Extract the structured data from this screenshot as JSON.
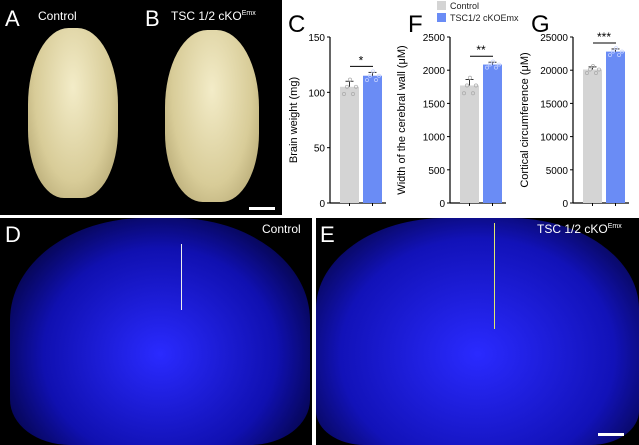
{
  "panels": {
    "a": {
      "letter": "A",
      "title": "Control"
    },
    "b": {
      "letter": "B",
      "title": "TSC 1/2 cKO",
      "sup": "Emx"
    },
    "d": {
      "letter": "D",
      "title": "Control"
    },
    "e": {
      "letter": "E",
      "title": "TSC 1/2 cKO",
      "sup": "Emx"
    }
  },
  "legend": [
    {
      "label": "Control",
      "color": "#d4d4d4"
    },
    {
      "label": "TSC1/2 cKOEmx",
      "color": "#6a8cf5"
    }
  ],
  "colors": {
    "control": "#d4d4d4",
    "ko": "#6a8cf5",
    "stain": "#1a1aff"
  },
  "chart_data": [
    {
      "type": "bar",
      "panel": "C",
      "ylabel": "Brain weight (mg)",
      "ylim": [
        0,
        150
      ],
      "yticks": [
        0,
        50,
        100,
        150
      ],
      "categories": [
        "Control",
        "TSC1/2 cKOEmx"
      ],
      "values": [
        105,
        115
      ],
      "errors": [
        5,
        3
      ],
      "significance": "*"
    },
    {
      "type": "bar",
      "panel": "F",
      "ylabel": "Width of the cerebral wall (μM)",
      "ylim": [
        0,
        2500
      ],
      "yticks": [
        0,
        500,
        1000,
        1500,
        2000,
        2500
      ],
      "categories": [
        "Control",
        "TSC1/2 cKOEmx"
      ],
      "values": [
        1770,
        2085
      ],
      "errors": [
        90,
        35
      ],
      "significance": "**"
    },
    {
      "type": "bar",
      "panel": "G",
      "ylabel": "Cortical circumference (μM)",
      "ylim": [
        0,
        25000
      ],
      "yticks": [
        0,
        5000,
        10000,
        15000,
        20000,
        25000
      ],
      "categories": [
        "Control",
        "TSC1/2 cKOEmx"
      ],
      "values": [
        20100,
        22800
      ],
      "errors": [
        400,
        400
      ],
      "significance": "***"
    }
  ]
}
